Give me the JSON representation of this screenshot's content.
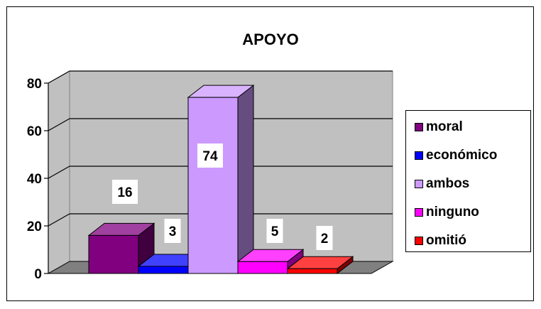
{
  "chart_data": {
    "type": "bar",
    "title": "APOYO",
    "ylim": [
      0,
      80
    ],
    "yticks": [
      0,
      20,
      40,
      60,
      80
    ],
    "grid": true,
    "legend_position": "right",
    "series": [
      {
        "name": "moral",
        "value": 16,
        "color": "#800080"
      },
      {
        "name": "económico",
        "value": 3,
        "color": "#0000FF"
      },
      {
        "name": "ambos",
        "value": 74,
        "color": "#CC99FF"
      },
      {
        "name": "ninguno",
        "value": 5,
        "color": "#FF00FF"
      },
      {
        "name": "omitió",
        "value": 2,
        "color": "#FF0000"
      }
    ],
    "data_labels": [
      "16",
      "3",
      "74",
      "5",
      "2"
    ]
  }
}
